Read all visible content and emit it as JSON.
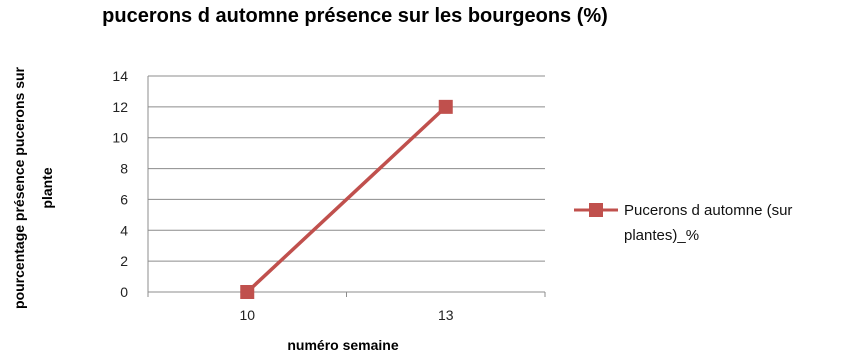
{
  "chart_data": {
    "type": "line",
    "title": "pucerons d automne présence sur les bourgeons (%)",
    "x": [
      10,
      13
    ],
    "categories": [
      "10",
      "13"
    ],
    "xlabel": "numéro semaine",
    "ylabel": "pourcentage présence pucerons sur plante",
    "ylabel_lines": [
      "pourcentage  présence pucerons sur",
      "plante"
    ],
    "ylim": [
      0,
      14
    ],
    "yticks": [
      "0",
      "2",
      "4",
      "6",
      "8",
      "10",
      "12",
      "14"
    ],
    "grid": true,
    "legend_position": "right",
    "series": [
      {
        "name": "Pucerons d automne (sur plantes)_%",
        "name_lines": [
          "Pucerons d automne (sur",
          "plantes)_%"
        ],
        "values": [
          0,
          12
        ],
        "color": "#c0504d",
        "marker": "square"
      }
    ]
  }
}
